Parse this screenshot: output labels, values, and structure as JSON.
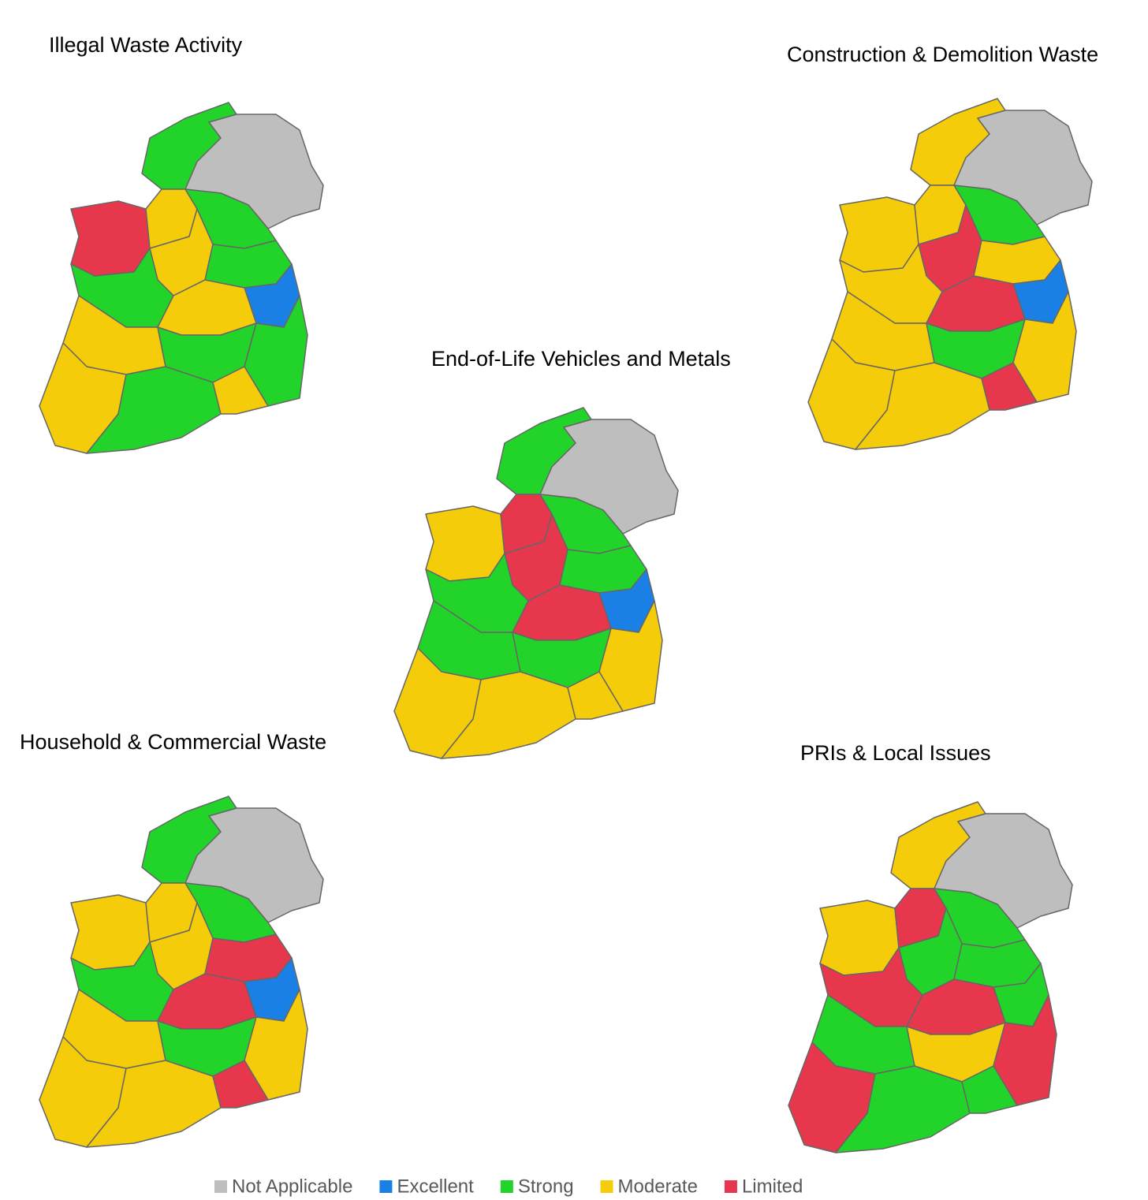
{
  "maps": [
    {
      "title": "Illegal Waste Activity"
    },
    {
      "title": "Construction & Demolition Waste"
    },
    {
      "title": "End-of-Life Vehicles and Metals"
    },
    {
      "title": "Household & Commercial Waste"
    },
    {
      "title": "PRIs & Local Issues"
    }
  ],
  "legend": [
    {
      "label": "Not Applicable",
      "color": "#bfbebe"
    },
    {
      "label": "Excellent",
      "color": "#1a80e6"
    },
    {
      "label": "Strong",
      "color": "#22d42a"
    },
    {
      "label": "Moderate",
      "color": "#f5cc0a"
    },
    {
      "label": "Limited",
      "color": "#e6374c"
    }
  ]
}
